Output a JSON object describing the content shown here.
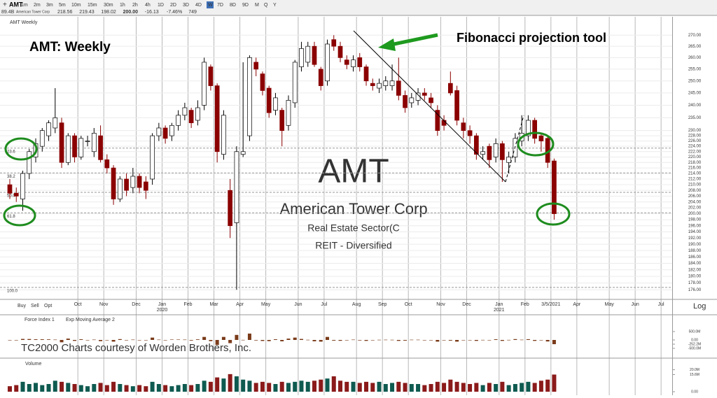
{
  "header": {
    "symbol": "AMT",
    "intervals": [
      "1m",
      "2m",
      "3m",
      "5m",
      "10m",
      "15m",
      "30m",
      "1h",
      "2h",
      "4h",
      "1D",
      "2D",
      "3D",
      "4D",
      "W",
      "7D",
      "8D",
      "9D",
      "M",
      "Q",
      "Y"
    ],
    "active_interval": "W",
    "market_cap": "89.4B",
    "company": "American Tower Corp",
    "quote": [
      "218.56",
      "219.43",
      "198.02",
      "200.00",
      "-16.13",
      "-7.46%",
      "749"
    ]
  },
  "trade_buttons": [
    "Buy",
    "Sell",
    "Opt"
  ],
  "scale_button": "Log",
  "chart_data": {
    "type": "candlestick",
    "panel_label": "AMT Weekly",
    "title": "AMT:  Weekly",
    "annotation": "Fibonacci projection tool",
    "credit": "TC2000 Charts courtesy of Worden Brothers, Inc.",
    "watermark": [
      "AMT",
      "American Tower Corp",
      "Real Estate Sector(C",
      "REIT - Diversified"
    ],
    "categories": [
      null,
      null,
      null,
      null,
      null,
      null,
      null,
      null,
      null,
      null,
      null,
      "Oct",
      null,
      null,
      null,
      "Nov",
      null,
      null,
      null,
      null,
      "Dec",
      null,
      null,
      null,
      "Jan",
      null,
      null,
      null,
      "Feb",
      null,
      null,
      null,
      "Mar",
      null,
      null,
      null,
      "Apr",
      null,
      null,
      null,
      "May",
      null,
      null,
      null,
      null,
      "Jun",
      null,
      null,
      null,
      "Jul",
      null,
      null,
      null,
      null,
      "Aug",
      null,
      null,
      null,
      "Sep",
      null,
      null,
      null,
      "Oct",
      null,
      null,
      null,
      null,
      "Nov",
      null,
      null,
      null,
      "Dec",
      null,
      null,
      null,
      null,
      "Jan",
      null,
      null,
      null,
      "Feb",
      null,
      null,
      null,
      "3/5/2021",
      null,
      null,
      null,
      "Apr",
      null,
      null,
      null,
      null,
      "May",
      null,
      null,
      null,
      "Jun",
      null,
      null,
      null,
      "Jul",
      null
    ],
    "year_categories": [
      null,
      null,
      null,
      null,
      null,
      null,
      null,
      null,
      null,
      null,
      null,
      null,
      null,
      null,
      null,
      null,
      null,
      null,
      null,
      null,
      null,
      null,
      null,
      null,
      "2020",
      null,
      null,
      null,
      null,
      null,
      null,
      null,
      null,
      null,
      null,
      null,
      null,
      null,
      null,
      null,
      null,
      null,
      null,
      null,
      null,
      null,
      null,
      null,
      null,
      null,
      null,
      null,
      null,
      null,
      null,
      null,
      null,
      null,
      null,
      null,
      null,
      null,
      null,
      null,
      null,
      null,
      null,
      null,
      null,
      null,
      null,
      null,
      null,
      null,
      null,
      null,
      "2021",
      null,
      null,
      null,
      null,
      null,
      null,
      null,
      null,
      null,
      null,
      null,
      null,
      null,
      null,
      null,
      null,
      null,
      null,
      null,
      null,
      null,
      null,
      null,
      null,
      null,
      null
    ],
    "open": [
      210,
      207,
      205,
      214,
      220,
      224,
      228,
      231,
      233,
      218,
      228,
      220,
      226,
      222,
      228,
      219,
      216,
      205,
      212,
      209,
      213,
      211,
      212,
      228,
      231,
      228,
      232,
      236,
      238,
      234,
      240,
      256,
      248,
      221,
      208,
      197,
      221,
      228,
      258,
      253,
      247,
      238,
      238,
      232,
      241,
      256,
      258,
      265,
      255,
      250,
      268,
      265,
      259,
      256,
      260,
      256,
      249,
      247,
      248,
      248,
      250,
      244,
      241,
      242,
      245,
      243,
      238,
      234,
      249,
      246,
      233,
      230,
      228,
      221,
      224,
      220,
      225,
      218,
      220,
      226,
      228,
      234,
      228,
      227,
      218.56,
      null,
      null,
      null,
      null,
      null,
      null,
      null,
      null,
      null,
      null,
      null,
      null,
      null,
      null,
      null,
      null,
      null,
      null
    ],
    "high": [
      212,
      209,
      215,
      223,
      227,
      231,
      234,
      247,
      235,
      229,
      229,
      228,
      228,
      231,
      232,
      221,
      217,
      213,
      214,
      216,
      214,
      213,
      229,
      233,
      232,
      233,
      238,
      241,
      239,
      242,
      260,
      257,
      249,
      238,
      212,
      224,
      258,
      261,
      260,
      254,
      248,
      245,
      239,
      244,
      259,
      267,
      267,
      267,
      256,
      268,
      270,
      267,
      261,
      261,
      262,
      257,
      251,
      251,
      252,
      257,
      260,
      246,
      245,
      247,
      247,
      245,
      240,
      236,
      254,
      248,
      235,
      232,
      229,
      224,
      225,
      227,
      226,
      222,
      229,
      236,
      236,
      235,
      229,
      228,
      219.43,
      null,
      null,
      null,
      null,
      null,
      null,
      null,
      null,
      null,
      null,
      null,
      null,
      null,
      null,
      null,
      null,
      null,
      null
    ],
    "low": [
      205,
      204,
      201,
      212,
      218,
      222,
      226,
      229,
      216,
      217,
      218,
      219,
      224,
      220,
      218,
      214,
      203,
      204,
      206,
      207,
      207,
      205,
      210,
      226,
      225,
      226,
      230,
      234,
      231,
      232,
      238,
      246,
      218,
      219,
      192,
      176,
      220,
      226,
      252,
      244,
      235,
      236,
      224,
      230,
      239,
      254,
      256,
      256,
      246,
      248,
      263,
      258,
      255,
      254,
      254,
      248,
      246,
      245,
      246,
      246,
      242,
      237,
      239,
      240,
      242,
      239,
      228,
      230,
      244,
      232,
      227,
      225,
      219,
      219,
      216,
      218,
      211,
      214,
      218,
      224,
      226,
      225,
      222,
      216,
      198.02,
      null,
      null,
      null,
      null,
      null,
      null,
      null,
      null,
      null,
      null,
      null,
      null,
      null,
      null,
      null,
      null,
      null,
      null
    ],
    "close": [
      207,
      206,
      214,
      222,
      225,
      230,
      233,
      235,
      218,
      228,
      220,
      227,
      226,
      229,
      219,
      216,
      205,
      212,
      208,
      213,
      209,
      208,
      228,
      231,
      227,
      232,
      236,
      239,
      233,
      239,
      258,
      248,
      222,
      236,
      196,
      222,
      222,
      260,
      255,
      246,
      237,
      243,
      230,
      242,
      258,
      264,
      265,
      257,
      248,
      266,
      265,
      260,
      257,
      259,
      256,
      250,
      248,
      249,
      250,
      250,
      244,
      239,
      243,
      245,
      244,
      241,
      230,
      232,
      245,
      234,
      230,
      228,
      221,
      222,
      219,
      225,
      219,
      220,
      227,
      229,
      234,
      227,
      226,
      218,
      200.0,
      null,
      null,
      null,
      null,
      null,
      null,
      null,
      null,
      null,
      null,
      null,
      null,
      null,
      null,
      null,
      null,
      null,
      null
    ],
    "up_color": "#ffffff",
    "down_color": "#8b0000",
    "log_scale": true,
    "ylim": [
      174,
      272
    ],
    "yticks": [
      {
        "value": 270,
        "label": "270.00"
      },
      {
        "value": 265,
        "label": "265.00"
      },
      {
        "value": 260,
        "label": "260.00"
      },
      {
        "value": 255,
        "label": "255.00"
      },
      {
        "value": 250,
        "label": "250.00"
      },
      {
        "value": 245,
        "label": "245.00"
      },
      {
        "value": 240,
        "label": "240.00"
      },
      {
        "value": 235,
        "label": "235.00"
      },
      {
        "value": 230,
        "label": "230.00"
      },
      {
        "value": 228,
        "label": "228.00"
      },
      {
        "value": 226,
        "label": "226.00"
      },
      {
        "value": 224,
        "label": "224.00"
      },
      {
        "value": 222,
        "label": "222.00"
      },
      {
        "value": 220,
        "label": "220.00"
      },
      {
        "value": 218,
        "label": "218.00"
      },
      {
        "value": 216,
        "label": "216.00"
      },
      {
        "value": 214,
        "label": "214.00"
      },
      {
        "value": 212,
        "label": "212.00"
      },
      {
        "value": 210,
        "label": "210.00"
      },
      {
        "value": 208,
        "label": "208.00"
      },
      {
        "value": 206,
        "label": "206.00"
      },
      {
        "value": 204,
        "label": "204.00"
      },
      {
        "value": 202,
        "label": "202.00"
      },
      {
        "value": 200,
        "label": "200.00"
      },
      {
        "value": 198,
        "label": "198.00"
      },
      {
        "value": 196,
        "label": "196.00"
      },
      {
        "value": 194,
        "label": "194.00"
      },
      {
        "value": 192,
        "label": "192.00"
      },
      {
        "value": 190,
        "label": "190.00"
      },
      {
        "value": 188,
        "label": "188.00"
      },
      {
        "value": 186,
        "label": "186.00"
      },
      {
        "value": 184,
        "label": "184.00"
      },
      {
        "value": 182,
        "label": "182.00"
      },
      {
        "value": 180,
        "label": "180.00"
      },
      {
        "value": 178,
        "label": "178.00"
      },
      {
        "value": 176,
        "label": "176.00"
      }
    ],
    "grid": true,
    "fib_levels": [
      {
        "label": "23.6",
        "value": 223.3
      },
      {
        "label": "38.2",
        "value": 214.2
      },
      {
        "label": "50.0",
        "value": 207.3
      },
      {
        "label": "61.8",
        "value": 200.3
      },
      {
        "label": "100.0",
        "value": 176.7
      }
    ],
    "force_index": {
      "title": "Force Index 1",
      "overlay": "Exp Moving Average 2",
      "color": "#7a3b1a",
      "values": [
        -20,
        -5,
        60,
        55,
        40,
        40,
        35,
        20,
        -140,
        80,
        -55,
        40,
        0,
        20,
        -70,
        -20,
        -100,
        50,
        -25,
        20,
        -25,
        -15,
        140,
        20,
        -25,
        25,
        25,
        20,
        -35,
        35,
        180,
        -70,
        -300,
        180,
        -190,
        300,
        5,
        380,
        -30,
        -60,
        -70,
        40,
        -80,
        80,
        140,
        60,
        10,
        -80,
        -100,
        180,
        -40,
        -50,
        -25,
        20,
        -30,
        -55,
        -15,
        10,
        15,
        10,
        -55,
        -40,
        15,
        15,
        -5,
        -15,
        -100,
        -15,
        -40,
        -100,
        -25,
        -15,
        -55,
        5,
        -25,
        40,
        -55,
        5,
        50,
        15,
        45,
        -55,
        -15,
        -90,
        -252.2,
        null,
        null,
        null,
        null,
        null,
        null,
        null,
        null,
        null,
        null,
        null,
        null,
        null,
        null,
        null,
        null,
        null,
        null
      ],
      "ylim": [
        -500,
        500
      ],
      "yticks": [
        {
          "value": 500,
          "label": "500.0M"
        },
        {
          "value": 0,
          "label": "0.00"
        },
        {
          "value": -252.2,
          "label": "-252.2M"
        },
        {
          "value": -500,
          "label": "-500.0M"
        }
      ]
    },
    "volume": {
      "title": "Volume",
      "up_color": "#0e5a50",
      "down_color": "#8b1a1a",
      "values": [
        5,
        6,
        9,
        7,
        8,
        6,
        7,
        10,
        9,
        8,
        7,
        6,
        5,
        7,
        8,
        6,
        9,
        7,
        6,
        5,
        6,
        5,
        9,
        7,
        6,
        5,
        6,
        7,
        6,
        7,
        10,
        9,
        13,
        12,
        16,
        14,
        11,
        10,
        8,
        9,
        8,
        7,
        9,
        8,
        9,
        10,
        9,
        10,
        11,
        12,
        14,
        10,
        9,
        9,
        8,
        9,
        8,
        9,
        7,
        8,
        9,
        8,
        7,
        7,
        6,
        7,
        9,
        8,
        11,
        9,
        8,
        7,
        8,
        6,
        8,
        7,
        9,
        6,
        7,
        8,
        9,
        8,
        10,
        11,
        15.6,
        null,
        null,
        null,
        null,
        null,
        null,
        null,
        null,
        null,
        null,
        null,
        null,
        null,
        null,
        null,
        null,
        null,
        null
      ],
      "ylim": [
        0,
        21
      ],
      "yticks": [
        {
          "value": 20,
          "label": "20.0M"
        },
        {
          "value": 15.6,
          "label": "15.6M"
        },
        {
          "value": 0,
          "label": "0.00"
        }
      ]
    }
  }
}
